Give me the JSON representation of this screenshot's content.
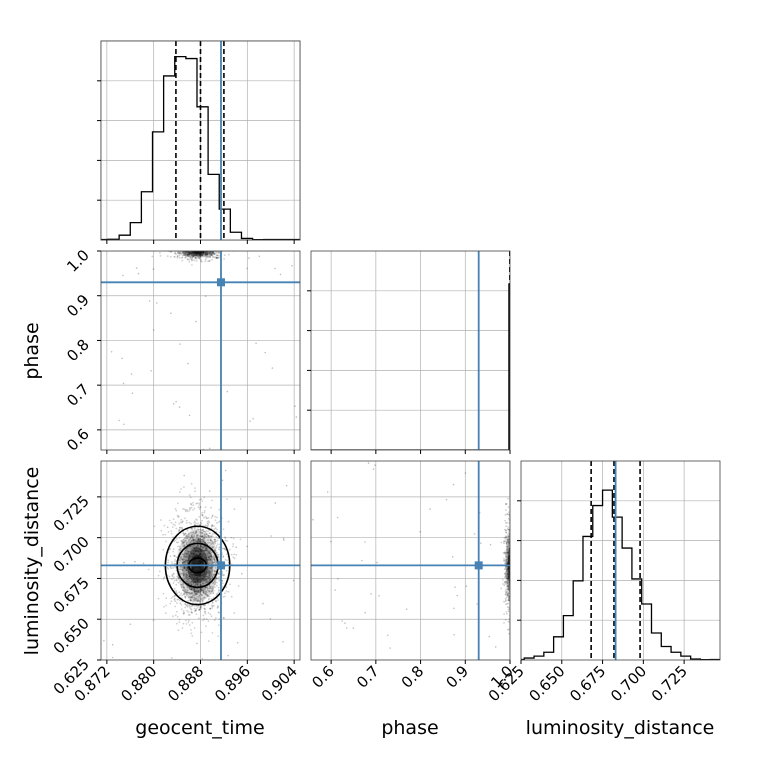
{
  "colors": {
    "truth": "#4682b4",
    "hist": "#000000",
    "grid": "#b0b0b0",
    "background": "#ffffff"
  },
  "chart_data": {
    "type": "corner",
    "parameters": [
      "geocent_time",
      "phase",
      "luminosity_distance"
    ],
    "truths": {
      "geocent_time": 0.8915,
      "phase": 0.93,
      "luminosity_distance": 0.683
    },
    "axes_labels": {
      "x": [
        "geocent_time",
        "phase",
        "luminosity_distance"
      ],
      "y": [
        "phase",
        "luminosity_distance"
      ]
    },
    "ranges": {
      "geocent_time": [
        0.871,
        0.905
      ],
      "phase": [
        0.555,
        1.0
      ],
      "luminosity_distance": [
        0.625,
        0.747
      ]
    },
    "ticks": {
      "geocent_time": [
        "0.872",
        "0.880",
        "0.888",
        "0.896",
        "0.904"
      ],
      "phase": [
        "0.6",
        "0.7",
        "0.8",
        "0.9",
        "1.0"
      ],
      "luminosity_distance_x": [
        "0.625",
        "0.650",
        "0.675",
        "0.700",
        "0.725"
      ],
      "luminosity_distance_y": [
        "0.625",
        "0.650",
        "0.675",
        "0.700",
        "0.725"
      ],
      "phase_y": [
        "0.6",
        "0.7",
        "0.8",
        "0.9",
        "1.0"
      ]
    },
    "tick_values": {
      "geocent_time": [
        0.872,
        0.88,
        0.888,
        0.896,
        0.904
      ],
      "phase": [
        0.6,
        0.7,
        0.8,
        0.9,
        1.0
      ],
      "luminosity_distance": [
        0.625,
        0.65,
        0.675,
        0.7,
        0.725
      ]
    },
    "histograms": {
      "geocent_time": {
        "bin_edges": [
          0.8722,
          0.8741,
          0.876,
          0.8779,
          0.8798,
          0.8817,
          0.8836,
          0.8855,
          0.8874,
          0.8893,
          0.8912,
          0.8931,
          0.895,
          0.8969,
          0.8988
        ],
        "counts": [
          0.004,
          0.025,
          0.09,
          0.25,
          0.56,
          0.85,
          0.95,
          0.94,
          0.69,
          0.34,
          0.16,
          0.04,
          0.008,
          0.002
        ],
        "quantiles": [
          0.8838,
          0.888,
          0.892
        ]
      },
      "phase": {
        "bin_edges": [
          0.555,
          0.9976,
          1.0
        ],
        "counts": [
          0.0,
          0.86
        ],
        "quantiles": [
          1.0,
          1.0,
          1.0
        ]
      },
      "luminosity_distance": {
        "bin_edges": [
          0.627,
          0.633,
          0.639,
          0.645,
          0.651,
          0.657,
          0.663,
          0.669,
          0.675,
          0.681,
          0.687,
          0.693,
          0.699,
          0.705,
          0.711,
          0.717,
          0.723,
          0.729,
          0.735,
          0.741
        ],
        "counts": [
          0.01,
          0.02,
          0.04,
          0.12,
          0.23,
          0.41,
          0.64,
          0.8,
          0.88,
          0.74,
          0.58,
          0.42,
          0.29,
          0.14,
          0.07,
          0.04,
          0.02,
          0.005,
          0.002
        ],
        "quantiles": [
          0.668,
          0.682,
          0.698
        ]
      }
    },
    "density_centers": {
      "geocent_time__phase": {
        "x": 0.8875,
        "y": 0.998
      },
      "geocent_time__luminosity_distance": {
        "x": 0.8875,
        "y": 0.683
      },
      "phase__luminosity_distance": {
        "x": 1.0,
        "y": 0.683
      }
    },
    "contours": {
      "geocent_time__luminosity_distance": [
        {
          "rx": 0.0015,
          "ry": 0.0045
        },
        {
          "rx": 0.0035,
          "ry": 0.0135
        },
        {
          "rx": 0.0055,
          "ry": 0.024
        }
      ]
    },
    "grid": true
  }
}
